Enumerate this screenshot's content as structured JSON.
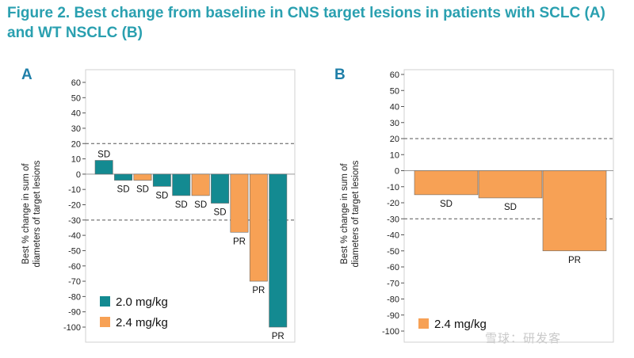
{
  "title": "Figure 2. Best change from baseline in CNS target lesions in patients with SCLC (A) and WT NSCLC (B)",
  "watermark": "雪球：研发客",
  "colors": {
    "teal": "#138a91",
    "orange": "#f7a155"
  },
  "chart_data": [
    {
      "type": "bar",
      "panel": "A",
      "ylabel": [
        "Best % change in sum of",
        "diameters of target lesions"
      ],
      "ylim": [
        -100,
        60
      ],
      "yticks": [
        60,
        50,
        40,
        30,
        20,
        10,
        0,
        -10,
        -20,
        -30,
        -40,
        -50,
        -60,
        -70,
        -80,
        -90,
        -100
      ],
      "reference_lines": [
        20,
        -30
      ],
      "legend": [
        {
          "label": "2.0 mg/kg",
          "color": "#138a91"
        },
        {
          "label": "2.4 mg/kg",
          "color": "#f7a155"
        }
      ],
      "bars": [
        {
          "value": 9,
          "dose": "2.0 mg/kg",
          "response": "SD"
        },
        {
          "value": -4,
          "dose": "2.0 mg/kg",
          "response": "SD"
        },
        {
          "value": -4,
          "dose": "2.4 mg/kg",
          "response": "SD"
        },
        {
          "value": -8,
          "dose": "2.0 mg/kg",
          "response": "SD"
        },
        {
          "value": -14,
          "dose": "2.0 mg/kg",
          "response": "SD"
        },
        {
          "value": -14,
          "dose": "2.4 mg/kg",
          "response": "SD"
        },
        {
          "value": -19,
          "dose": "2.0 mg/kg",
          "response": "SD"
        },
        {
          "value": -38,
          "dose": "2.4 mg/kg",
          "response": "PR"
        },
        {
          "value": -70,
          "dose": "2.4 mg/kg",
          "response": "PR"
        },
        {
          "value": -100,
          "dose": "2.0 mg/kg",
          "response": "PR"
        }
      ]
    },
    {
      "type": "bar",
      "panel": "B",
      "ylabel": [
        "Best % change in sum of",
        "diameters of target lesions"
      ],
      "ylim": [
        -100,
        60
      ],
      "yticks": [
        60,
        50,
        40,
        30,
        20,
        10,
        0,
        -10,
        -20,
        -30,
        -40,
        -50,
        -60,
        -70,
        -80,
        -90,
        -100
      ],
      "reference_lines": [
        20,
        -30
      ],
      "legend": [
        {
          "label": "2.4 mg/kg",
          "color": "#f7a155"
        }
      ],
      "bars": [
        {
          "value": -15,
          "dose": "2.4 mg/kg",
          "response": "SD"
        },
        {
          "value": -17,
          "dose": "2.4 mg/kg",
          "response": "SD"
        },
        {
          "value": -50,
          "dose": "2.4 mg/kg",
          "response": "PR"
        }
      ]
    }
  ]
}
